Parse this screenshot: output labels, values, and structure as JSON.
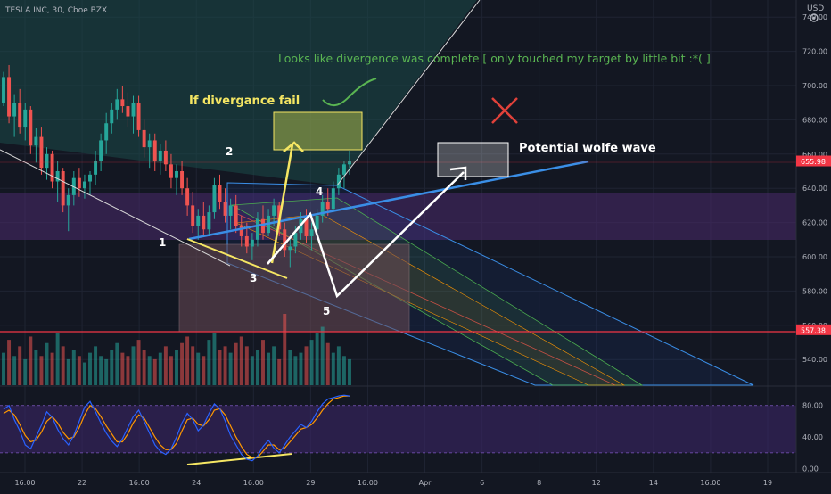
{
  "header": {
    "symbol_label": "TESLA INC, 30, Cboe BZX",
    "currency_label": "USD"
  },
  "colors": {
    "background": "#131722",
    "up_candle": "#26a69a",
    "down_candle": "#ef5350",
    "grid": "#1f2433",
    "text": "#b2b5be",
    "channel_fill": "#1b4a48",
    "purple_zone": "#4a2a6b",
    "pink_box": "#6b4b55",
    "trend_blue": "#3a8ee6",
    "annotation_yellow": "#f5e663",
    "annotation_green": "#5ab552",
    "annotation_white": "#ffffff",
    "cross_red": "#e0413a",
    "support_red": "#f23645",
    "stoch_k": "#2962ff",
    "stoch_d": "#ff9800",
    "stoch_band": "#3b2566"
  },
  "chart_data": [
    {
      "type": "candlestick",
      "title": "TESLA INC, 30, Cboe BZX",
      "ylabel": "USD",
      "ylim": [
        525,
        750
      ],
      "x_ticks": [
        "16:00",
        "22",
        "16:00",
        "24",
        "16:00",
        "29",
        "16:00",
        "Apr",
        "6",
        "8",
        "12",
        "14",
        "16:00",
        "19"
      ],
      "y_ticks": [
        540,
        560,
        580,
        600,
        620,
        640,
        660,
        680,
        700,
        720,
        740
      ],
      "price_tags": [
        {
          "value": 655.98,
          "label": "655.98",
          "color": "#f23645"
        },
        {
          "value": 557.38,
          "label": "557.38",
          "color": "#f23645"
        }
      ],
      "grid": true,
      "candles": [
        [
          690,
          708,
          688,
          705
        ],
        [
          705,
          712,
          678,
          682
        ],
        [
          682,
          695,
          670,
          690
        ],
        [
          690,
          698,
          672,
          676
        ],
        [
          676,
          690,
          668,
          686
        ],
        [
          686,
          688,
          660,
          665
        ],
        [
          665,
          675,
          655,
          670
        ],
        [
          670,
          676,
          648,
          652
        ],
        [
          652,
          664,
          645,
          660
        ],
        [
          660,
          662,
          640,
          644
        ],
        [
          644,
          656,
          632,
          650
        ],
        [
          650,
          652,
          626,
          630
        ],
        [
          630,
          640,
          615,
          636
        ],
        [
          636,
          650,
          630,
          646
        ],
        [
          646,
          652,
          635,
          640
        ],
        [
          640,
          648,
          634,
          644
        ],
        [
          644,
          650,
          636,
          648
        ],
        [
          648,
          662,
          642,
          656
        ],
        [
          656,
          672,
          650,
          668
        ],
        [
          668,
          684,
          660,
          678
        ],
        [
          678,
          690,
          672,
          686
        ],
        [
          686,
          698,
          680,
          692
        ],
        [
          692,
          700,
          684,
          688
        ],
        [
          688,
          696,
          676,
          682
        ],
        [
          682,
          694,
          672,
          690
        ],
        [
          690,
          694,
          670,
          674
        ],
        [
          674,
          680,
          658,
          664
        ],
        [
          664,
          672,
          652,
          668
        ],
        [
          668,
          672,
          650,
          656
        ],
        [
          656,
          666,
          648,
          662
        ],
        [
          662,
          668,
          650,
          654
        ],
        [
          654,
          660,
          640,
          646
        ],
        [
          646,
          654,
          636,
          650
        ],
        [
          650,
          656,
          636,
          640
        ],
        [
          640,
          646,
          624,
          630
        ],
        [
          630,
          638,
          614,
          618
        ],
        [
          618,
          628,
          610,
          624
        ],
        [
          624,
          632,
          612,
          616
        ],
        [
          616,
          630,
          612,
          626
        ],
        [
          626,
          646,
          622,
          642
        ],
        [
          642,
          648,
          628,
          632
        ],
        [
          632,
          640,
          620,
          624
        ],
        [
          624,
          634,
          616,
          630
        ],
        [
          630,
          636,
          614,
          618
        ],
        [
          618,
          624,
          606,
          612
        ],
        [
          612,
          620,
          602,
          606
        ],
        [
          606,
          614,
          598,
          610
        ],
        [
          610,
          626,
          606,
          622
        ],
        [
          622,
          630,
          610,
          614
        ],
        [
          614,
          628,
          612,
          624
        ],
        [
          624,
          634,
          618,
          630
        ],
        [
          630,
          632,
          612,
          616
        ],
        [
          616,
          620,
          600,
          604
        ],
        [
          604,
          612,
          594,
          606
        ],
        [
          606,
          618,
          602,
          614
        ],
        [
          614,
          626,
          610,
          622
        ],
        [
          622,
          628,
          608,
          612
        ],
        [
          612,
          620,
          604,
          616
        ],
        [
          616,
          628,
          612,
          624
        ],
        [
          624,
          636,
          620,
          632
        ],
        [
          632,
          640,
          624,
          628
        ],
        [
          628,
          644,
          626,
          640
        ],
        [
          640,
          652,
          636,
          648
        ],
        [
          648,
          656,
          640,
          654
        ],
        [
          654,
          662,
          648,
          656
        ]
      ],
      "volume": [
        10,
        14,
        9,
        12,
        8,
        15,
        11,
        9,
        13,
        10,
        16,
        12,
        8,
        11,
        9,
        7,
        10,
        12,
        9,
        8,
        11,
        13,
        10,
        9,
        12,
        14,
        11,
        9,
        8,
        10,
        12,
        9,
        11,
        13,
        15,
        12,
        10,
        9,
        14,
        16,
        11,
        12,
        10,
        13,
        15,
        12,
        9,
        11,
        14,
        10,
        12,
        8,
        22,
        11,
        9,
        10,
        12,
        14,
        16,
        18,
        13,
        10,
        12,
        9,
        8
      ],
      "stochastic": {
        "ylim": [
          -5,
          100
        ],
        "y_ticks": [
          0,
          40,
          80
        ],
        "band": [
          20,
          80
        ],
        "k": [
          75,
          80,
          62,
          48,
          30,
          25,
          40,
          55,
          72,
          65,
          50,
          38,
          30,
          42,
          60,
          78,
          85,
          72,
          58,
          45,
          35,
          28,
          38,
          52,
          66,
          74,
          60,
          45,
          30,
          22,
          18,
          25,
          40,
          58,
          70,
          62,
          48,
          55,
          70,
          82,
          76,
          60,
          42,
          30,
          18,
          12,
          10,
          16,
          28,
          36,
          26,
          20,
          30,
          40,
          48,
          56,
          52,
          60,
          72,
          82,
          88,
          90,
          92,
          93,
          92
        ],
        "d": [
          70,
          74,
          68,
          56,
          42,
          34,
          36,
          46,
          60,
          66,
          58,
          46,
          38,
          40,
          52,
          68,
          80,
          76,
          66,
          54,
          44,
          34,
          34,
          44,
          58,
          68,
          64,
          52,
          40,
          30,
          24,
          24,
          32,
          48,
          62,
          64,
          56,
          54,
          62,
          74,
          76,
          68,
          54,
          40,
          28,
          18,
          14,
          14,
          22,
          30,
          30,
          24,
          26,
          34,
          42,
          50,
          52,
          56,
          64,
          74,
          82,
          88,
          90,
          92,
          92
        ]
      }
    }
  ],
  "annotations": {
    "main_note": "Looks like divergence was complete [ only touched my target by little bit :*(  ]",
    "divergence_fail": "If divergance fail",
    "wolfe_wave": "Potential wolfe wave",
    "points": [
      "1",
      "2",
      "3",
      "4",
      "5"
    ]
  }
}
